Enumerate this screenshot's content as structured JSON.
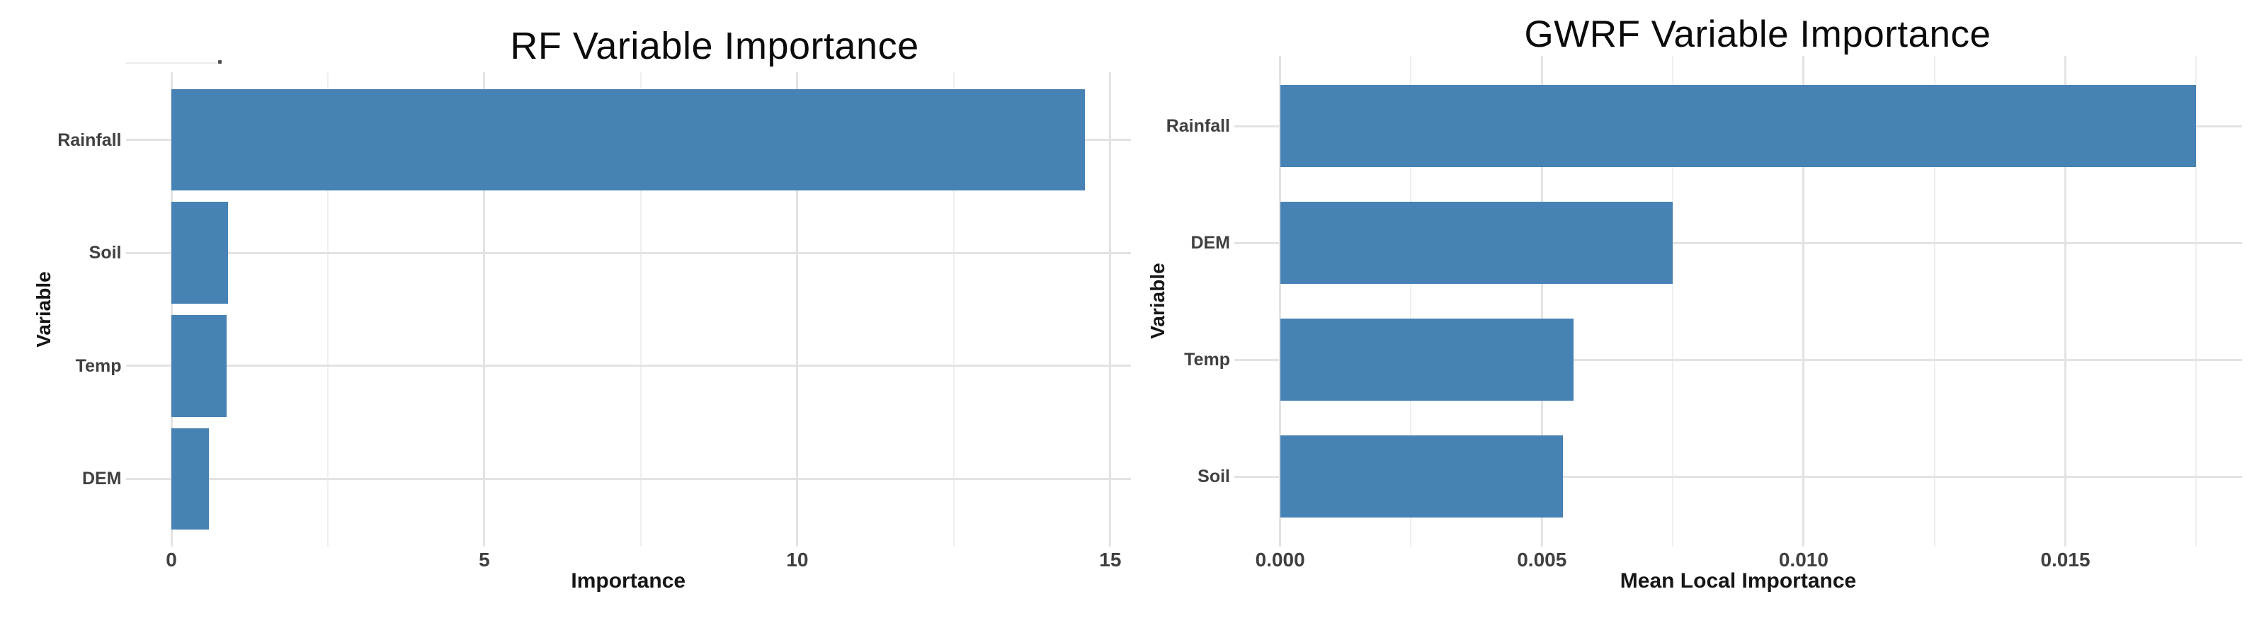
{
  "colors": {
    "bar": "#4682B4",
    "grid_major": "#e3e3e3",
    "grid_minor": "#efefef",
    "axis_text": "#404040",
    "axis_title": "#161616",
    "chart_title": "#0b0b0b",
    "background": "#ffffff"
  },
  "chart_data": [
    {
      "id": "rf_variable_importance",
      "type": "bar",
      "orientation": "horizontal",
      "title": "RF Variable Importance",
      "xlabel": "Importance",
      "ylabel": "Variable",
      "categories": [
        "Rainfall",
        "Soil",
        "Temp",
        "DEM"
      ],
      "values": [
        14.6,
        0.9,
        0.88,
        0.6
      ],
      "xlim": [
        -0.73,
        15.33
      ],
      "x_ticks": {
        "values": [
          0,
          5,
          10,
          15
        ],
        "labels": [
          "0",
          "5",
          "10",
          "15"
        ]
      },
      "x_minor_ticks": [
        2.5,
        7.5,
        12.5
      ],
      "grid": "major+minor",
      "legend": "none",
      "bar_width_fraction": 0.9
    },
    {
      "id": "gwrf_variable_importance",
      "type": "bar",
      "orientation": "horizontal",
      "title": "GWRF Variable Importance",
      "xlabel": "Mean Local Importance",
      "ylabel": "Variable",
      "categories": [
        "Rainfall",
        "DEM",
        "Temp",
        "Soil"
      ],
      "values": [
        0.0175,
        0.0075,
        0.0056,
        0.0054
      ],
      "xlim": [
        -0.000875,
        0.018375
      ],
      "x_ticks": {
        "values": [
          0,
          0.005,
          0.01,
          0.015
        ],
        "labels": [
          "0.000",
          "0.005",
          "0.010",
          "0.015"
        ]
      },
      "x_minor_ticks": [
        0.0025,
        0.0075,
        0.0125,
        0.0175
      ],
      "grid": "major+minor",
      "legend": "none",
      "bar_width_fraction": 0.7
    }
  ]
}
